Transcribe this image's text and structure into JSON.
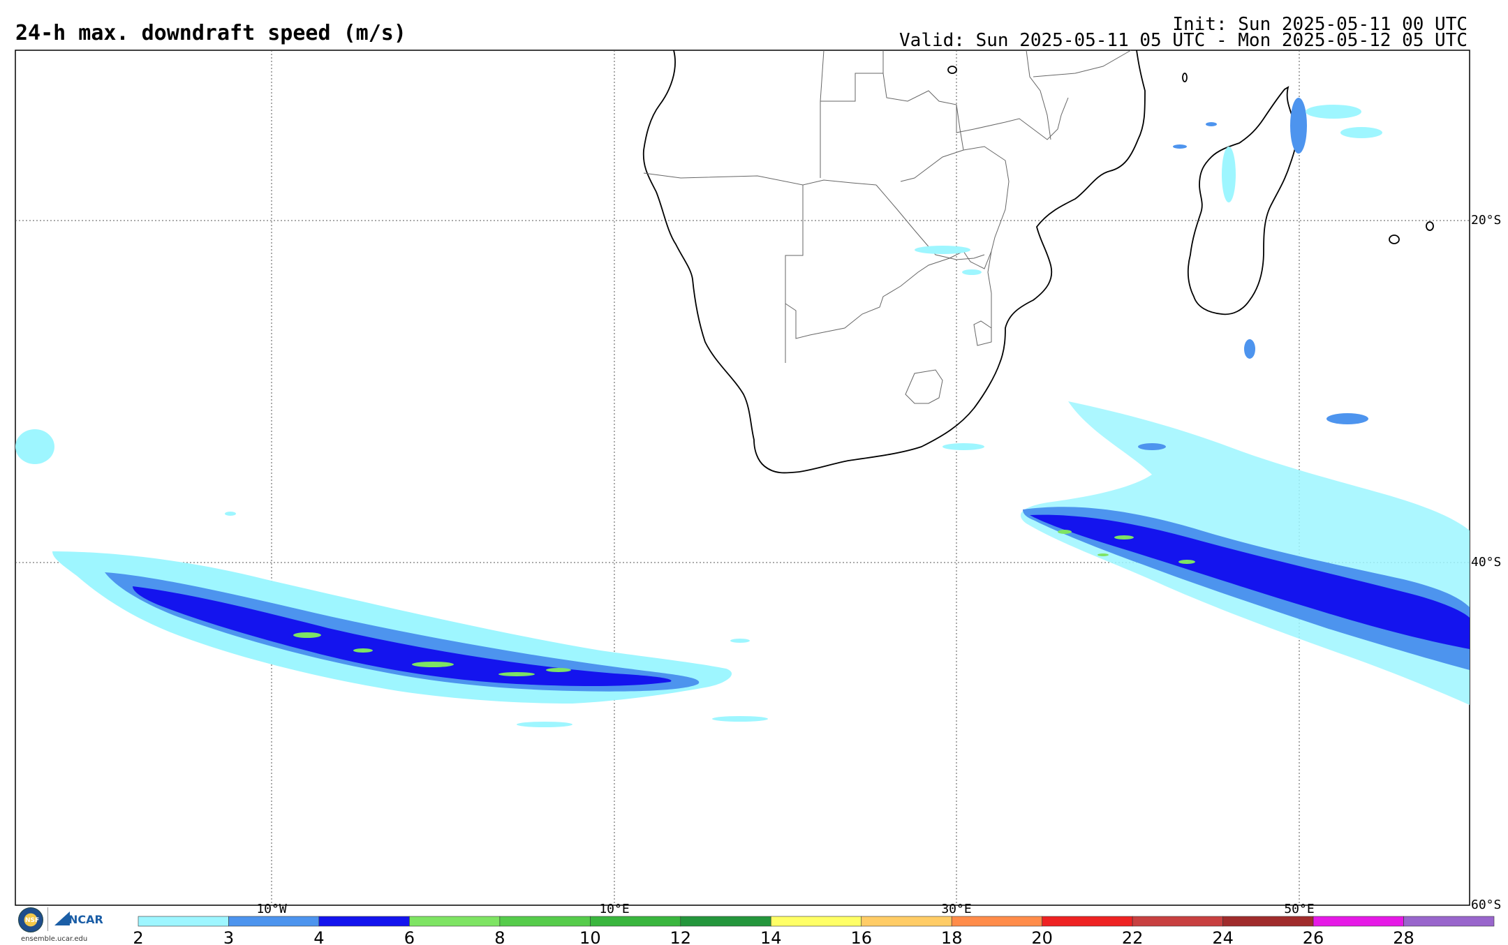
{
  "header": {
    "title": "24-h max. downdraft speed (m/s)",
    "init": "Init: Sun 2025-05-11 00 UTC",
    "valid": "Valid: Sun 2025-05-11 05 UTC - Mon 2025-05-12 05 UTC"
  },
  "map": {
    "longitude_labels": [
      "10°W",
      "10°E",
      "30°E",
      "50°E"
    ],
    "latitude_labels": [
      "20°S",
      "40°S",
      "60°S"
    ]
  },
  "colorbar": {
    "ticks": [
      "2",
      "3",
      "4",
      "6",
      "8",
      "10",
      "12",
      "14",
      "16",
      "18",
      "20",
      "22",
      "24",
      "26",
      "28"
    ],
    "colors": [
      "#9ef6ff",
      "#4d94ee",
      "#1414ee",
      "#7ee463",
      "#56cc4b",
      "#3ab63e",
      "#24963c",
      "#ffff66",
      "#ffcc66",
      "#ff8c4a",
      "#ee2222",
      "#c84040",
      "#a02c2c",
      "#e619e6",
      "#9966cc"
    ]
  },
  "logos": {
    "nsf": "NSF",
    "ncar": "NCAR",
    "site": "ensemble.ucar.edu"
  }
}
